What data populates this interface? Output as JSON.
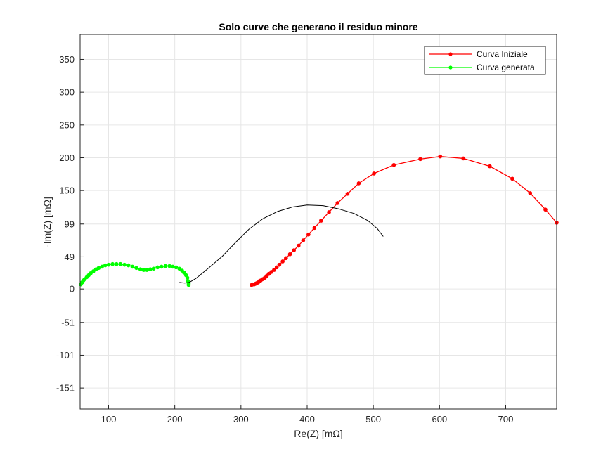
{
  "chart_data": {
    "type": "line",
    "title": "Solo curve che generano il residuo minore",
    "xlabel": "Re(Z) [mΩ]",
    "ylabel": "-Im(Z) [mΩ]",
    "xlim": [
      57,
      777
    ],
    "ylim": [
      -183,
      388
    ],
    "xticks": [
      100,
      200,
      300,
      400,
      500,
      600,
      700
    ],
    "yticks": [
      -151,
      -101,
      -51,
      0,
      49,
      99,
      150,
      200,
      250,
      300,
      350
    ],
    "grid": true,
    "legend_position": "top-right",
    "colors": {
      "initial": "#ff0000",
      "generated": "#00ff00",
      "unlabeled": "#000000"
    },
    "series": [
      {
        "name": "Curva Iniziale",
        "color": "#ff0000",
        "marker": "dot",
        "points": [
          [
            316,
            6
          ],
          [
            318,
            7
          ],
          [
            320,
            7
          ],
          [
            322,
            8
          ],
          [
            324,
            9
          ],
          [
            326,
            10
          ],
          [
            328,
            12
          ],
          [
            330,
            13
          ],
          [
            333,
            15
          ],
          [
            336,
            17
          ],
          [
            339,
            20
          ],
          [
            342,
            23
          ],
          [
            346,
            26
          ],
          [
            350,
            29
          ],
          [
            354,
            33
          ],
          [
            358,
            37
          ],
          [
            363,
            42
          ],
          [
            368,
            47
          ],
          [
            374,
            53
          ],
          [
            380,
            59
          ],
          [
            387,
            66
          ],
          [
            394,
            74
          ],
          [
            402,
            83
          ],
          [
            411,
            93
          ],
          [
            421,
            104
          ],
          [
            433,
            117
          ],
          [
            446,
            131
          ],
          [
            461,
            145
          ],
          [
            478,
            161
          ],
          [
            501,
            176
          ],
          [
            531,
            189
          ],
          [
            571,
            198
          ],
          [
            601,
            202
          ],
          [
            636,
            199
          ],
          [
            676,
            187
          ],
          [
            710,
            168
          ],
          [
            737,
            146
          ],
          [
            760,
            121
          ],
          [
            777,
            101
          ]
        ]
      },
      {
        "name": "Curva generata",
        "color": "#00ff00",
        "marker": "dot",
        "points": [
          [
            58,
            7
          ],
          [
            60,
            10
          ],
          [
            62,
            13
          ],
          [
            64,
            15
          ],
          [
            67,
            18
          ],
          [
            70,
            21
          ],
          [
            73,
            24
          ],
          [
            77,
            27
          ],
          [
            81,
            30
          ],
          [
            85,
            32
          ],
          [
            90,
            34
          ],
          [
            95,
            36
          ],
          [
            100,
            37
          ],
          [
            106,
            38
          ],
          [
            112,
            38
          ],
          [
            118,
            38
          ],
          [
            124,
            37
          ],
          [
            130,
            36
          ],
          [
            136,
            34
          ],
          [
            142,
            32
          ],
          [
            148,
            30
          ],
          [
            153,
            29
          ],
          [
            158,
            29
          ],
          [
            163,
            30
          ],
          [
            168,
            31
          ],
          [
            174,
            33
          ],
          [
            180,
            34
          ],
          [
            186,
            35
          ],
          [
            192,
            35
          ],
          [
            197,
            34
          ],
          [
            202,
            33
          ],
          [
            207,
            31
          ],
          [
            211,
            28
          ],
          [
            214,
            25
          ],
          [
            217,
            21
          ],
          [
            219,
            17
          ],
          [
            220,
            12
          ],
          [
            221,
            8
          ],
          [
            221,
            6
          ]
        ]
      },
      {
        "color": "#000000",
        "marker": "none",
        "points": [
          [
            207,
            10
          ],
          [
            215,
            9
          ],
          [
            222,
            10
          ],
          [
            232,
            16
          ],
          [
            250,
            31
          ],
          [
            272,
            50
          ],
          [
            292,
            71
          ],
          [
            312,
            91
          ],
          [
            333,
            107
          ],
          [
            355,
            118
          ],
          [
            378,
            125
          ],
          [
            400,
            128
          ],
          [
            424,
            127
          ],
          [
            448,
            122
          ],
          [
            471,
            115
          ],
          [
            492,
            104
          ],
          [
            506,
            92
          ],
          [
            515,
            80
          ]
        ]
      }
    ]
  }
}
